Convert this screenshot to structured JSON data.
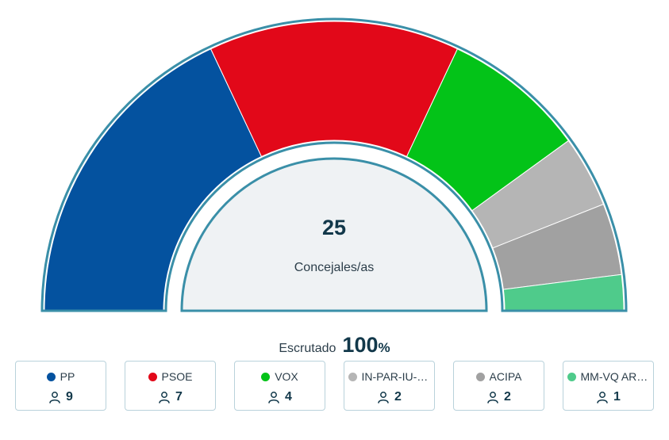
{
  "chart_data": {
    "type": "pie",
    "variant": "semicircle-parliament",
    "title": "",
    "total": 25,
    "total_label": "Concejales/as",
    "categories": [
      "PP",
      "PSOE",
      "VOX",
      "IN-PAR-IU-P...",
      "ACIPA",
      "MM-VQ ARA..."
    ],
    "values": [
      9,
      7,
      4,
      2,
      2,
      1
    ],
    "colors": [
      "#04529f",
      "#e20819",
      "#03c318",
      "#b5b5b5",
      "#a1a1a1",
      "#4fcb8b"
    ],
    "outline_color": "#3a8fa8",
    "inner_fill": "#eff2f4"
  },
  "scrutiny": {
    "label": "Escrutado",
    "value": "100",
    "unit": "%"
  }
}
